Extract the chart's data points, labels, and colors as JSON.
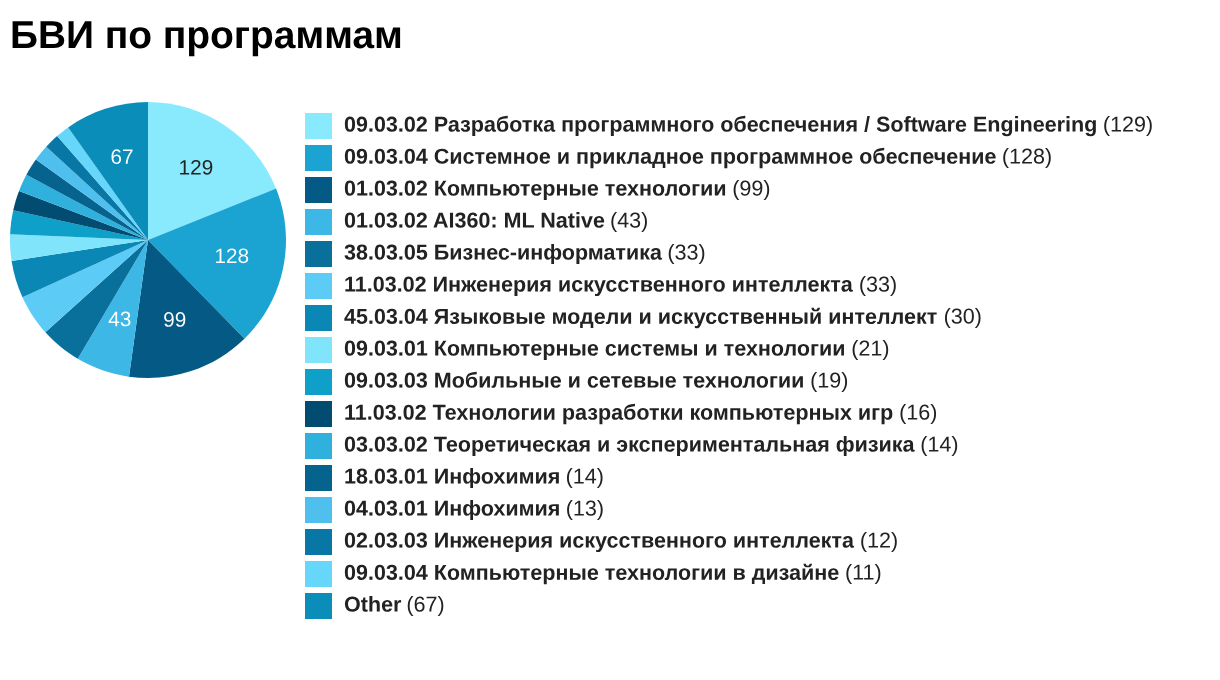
{
  "chart_data": {
    "type": "pie",
    "title": "БВИ по программам",
    "legend": "right",
    "categories": [
      "09.03.02 Разработка программного обеспечения / Software Engineering (129)",
      "09.03.04 Системное и прикладное программное обеспечение (128)",
      "01.03.02 Компьютерные технологии (99)",
      "01.03.02 AI360: ML Native (43)",
      "38.03.05 Бизнес-информатика (33)",
      "11.03.02 Инженерия искусственного интеллекта (33)",
      "45.03.04 Языковые модели и искусственный интеллект (30)",
      "09.03.01 Компьютерные системы и технологии (21)",
      "09.03.03 Мобильные и сетевые технологии (19)",
      "11.03.02 Технологии разработки компьютерных игр (16)",
      "03.03.02 Теоретическая и экспериментальная физика (14)",
      "18.03.01 Инфохимия (14)",
      "04.03.01 Инфохимия (13)",
      "02.03.03 Инженерия искусственного интеллекта (12)",
      "09.03.04 Компьютерные технологии в дизайне (11)",
      "Other (67)"
    ],
    "values": [
      129,
      128,
      99,
      43,
      33,
      33,
      30,
      21,
      19,
      16,
      14,
      14,
      13,
      12,
      11,
      67
    ],
    "colors": [
      "#88eafc",
      "#1ba3d1",
      "#045a85",
      "#3db8e6",
      "#09709b",
      "#5ccbf5",
      "#0a87b5",
      "#80e4fb",
      "#0ea0c8",
      "#024c72",
      "#30b0dc",
      "#05638e",
      "#4fc0ee",
      "#0877a6",
      "#66d6fb",
      "#0b8dba"
    ],
    "value_labels": [
      "129",
      "128",
      "99",
      "43",
      null,
      null,
      null,
      null,
      null,
      null,
      null,
      null,
      null,
      null,
      null,
      "67"
    ]
  }
}
